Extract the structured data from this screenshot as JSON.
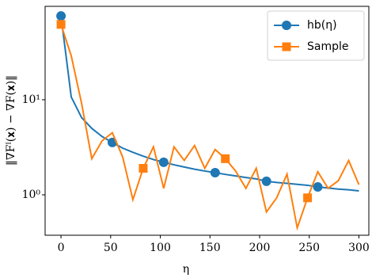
{
  "chart_data": {
    "type": "line",
    "xlabel": "η",
    "ylabel": "‖∇Fᴵ(𝐱) − ∇F(𝐱)‖",
    "x": [
      0,
      10.3,
      20.7,
      31,
      41.4,
      51.7,
      62.1,
      72.4,
      82.8,
      93.1,
      103.4,
      113.8,
      124.1,
      134.5,
      144.8,
      155.2,
      165.5,
      175.9,
      186.2,
      196.6,
      206.9,
      217.2,
      227.6,
      237.9,
      248.3,
      258.6,
      269,
      279.3,
      289.7,
      300
    ],
    "series": [
      {
        "name": "hb(η)",
        "color": "#1f77b4",
        "marker": "circle",
        "markevery": 5,
        "values": [
          76,
          10.7,
          6.5,
          5.0,
          4.1,
          3.55,
          3.1,
          2.8,
          2.55,
          2.35,
          2.2,
          2.07,
          1.96,
          1.86,
          1.78,
          1.71,
          1.64,
          1.58,
          1.52,
          1.47,
          1.39,
          1.35,
          1.32,
          1.29,
          1.26,
          1.21,
          1.18,
          1.15,
          1.13,
          1.1
        ]
      },
      {
        "name": "Sample",
        "color": "#ff7f0e",
        "marker": "square",
        "markevery": 8,
        "values": [
          62,
          29,
          9.2,
          2.4,
          3.7,
          4.5,
          2.5,
          0.89,
          1.9,
          3.2,
          1.17,
          3.2,
          2.3,
          3.3,
          1.9,
          3.0,
          2.4,
          1.78,
          1.17,
          1.9,
          0.66,
          0.93,
          1.65,
          0.45,
          0.93,
          1.75,
          1.17,
          1.41,
          2.3,
          1.28
        ]
      }
    ],
    "xlim": [
      -16,
      310
    ],
    "xticks": [
      0,
      50,
      100,
      150,
      200,
      250,
      300
    ],
    "ylim": [
      0.376,
      96
    ],
    "log_y": true,
    "yticks": [
      {
        "value": 1,
        "label": "10⁰"
      },
      {
        "value": 10,
        "label": "10¹"
      }
    ],
    "legend": "upper right"
  }
}
